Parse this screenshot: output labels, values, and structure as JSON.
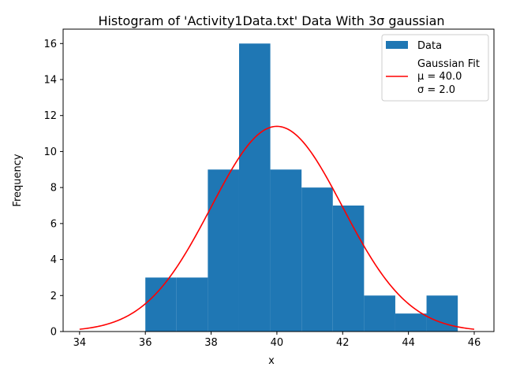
{
  "chart_data": {
    "type": "bar",
    "title": "Histogram of 'Activity1Data.txt' Data With 3σ gaussian",
    "xlabel": "x",
    "ylabel": "Frequency",
    "xlim": [
      33.5,
      46.6
    ],
    "ylim": [
      0,
      16.8
    ],
    "xticks": [
      34,
      36,
      38,
      40,
      42,
      44,
      46
    ],
    "yticks": [
      0,
      2,
      4,
      6,
      8,
      10,
      12,
      14,
      16
    ],
    "bar_color": "#1f77b4",
    "bins": [
      {
        "left": 36.0,
        "right": 36.95,
        "count": 3
      },
      {
        "left": 36.95,
        "right": 37.9,
        "count": 3
      },
      {
        "left": 37.9,
        "right": 38.85,
        "count": 9
      },
      {
        "left": 38.85,
        "right": 39.8,
        "count": 16
      },
      {
        "left": 39.8,
        "right": 40.75,
        "count": 9
      },
      {
        "left": 40.75,
        "right": 41.7,
        "count": 8
      },
      {
        "left": 41.7,
        "right": 42.65,
        "count": 7
      },
      {
        "left": 42.65,
        "right": 43.6,
        "count": 2
      },
      {
        "left": 43.6,
        "right": 44.55,
        "count": 1
      },
      {
        "left": 44.55,
        "right": 45.5,
        "count": 2
      }
    ],
    "series": [
      {
        "name": "Data",
        "kind": "histogram",
        "color": "#1f77b4"
      },
      {
        "name": "Gaussian Fit",
        "kind": "line",
        "color": "#ff0000",
        "mu": 40.0,
        "sigma": 2.0,
        "peak": 11.4,
        "x_range": [
          34,
          46
        ]
      }
    ],
    "legend": {
      "position": "top-right",
      "entries": [
        "Data",
        "Gaussian Fit",
        "μ = 40.0",
        "σ = 2.0"
      ]
    }
  }
}
